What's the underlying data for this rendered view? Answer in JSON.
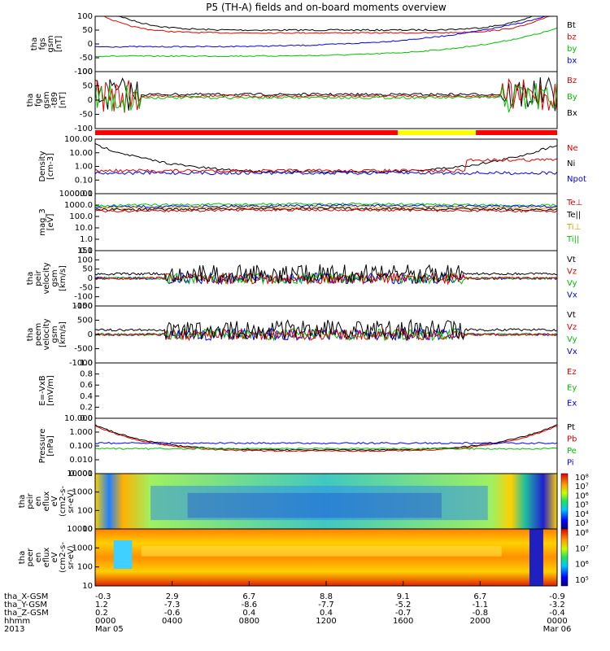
{
  "title": "P5 (TH-A) fields and on-board moments overview",
  "chart_data": {
    "type": "line",
    "panels": [
      {
        "id": "fgs",
        "ylabel": [
          "tha",
          "fgs",
          "gsm",
          "[nT]"
        ],
        "yticks": [
          "100",
          "50",
          "0",
          "-50",
          "-100"
        ],
        "legend": [
          {
            "name": "Bt",
            "color": "#000000"
          },
          {
            "name": "bz",
            "color": "#e00000"
          },
          {
            "name": "by",
            "color": "#00c000"
          },
          {
            "name": "bx",
            "color": "#0000ff"
          }
        ]
      },
      {
        "id": "fge",
        "ylabel": [
          "tha",
          "fge",
          "gsm",
          "-t89",
          "[nT]"
        ],
        "yticks": [
          "100",
          "50",
          "0",
          "-50",
          "-100"
        ],
        "legend": [
          {
            "name": "Bz",
            "color": "#e00000"
          },
          {
            "name": "By",
            "color": "#00c000"
          },
          {
            "name": "Bx",
            "color": "#000000"
          }
        ]
      },
      {
        "id": "bar",
        "ylabel": [],
        "yticks": [],
        "legend": [],
        "segments": [
          {
            "from": 0,
            "to": 0.655,
            "color": "#ff0000"
          },
          {
            "from": 0.655,
            "to": 0.824,
            "color": "#ffff00"
          },
          {
            "from": 0.824,
            "to": 1,
            "color": "#ff0000"
          }
        ]
      },
      {
        "id": "density",
        "ylabel": [
          "Density",
          "[cm-3]"
        ],
        "yticks": [
          "100.00",
          "10.00",
          "1.00",
          "0.10",
          "0.01"
        ],
        "legend": [
          {
            "name": "Ne",
            "color": "#e00000"
          },
          {
            "name": "Ni",
            "color": "#000000"
          },
          {
            "name": "Npot",
            "color": "#0000ff"
          }
        ]
      },
      {
        "id": "temp",
        "ylabel": [
          "mag_3",
          "[eV]"
        ],
        "yticks": [
          "10000.0",
          "1000.0",
          "100.0",
          "10.0",
          "1.0",
          "0.1"
        ],
        "legend": [
          {
            "name": "Te⊥",
            "color": "#e00000"
          },
          {
            "name": "Te||",
            "color": "#000000"
          },
          {
            "name": "Ti⊥",
            "color": "#e0a000"
          },
          {
            "name": "Ti||",
            "color": "#00c000"
          }
        ]
      },
      {
        "id": "peir_v",
        "ylabel": [
          "tha",
          "peir",
          "velocity",
          "gsm",
          "[km/s]"
        ],
        "yticks": [
          "150",
          "100",
          "50",
          "0",
          "-50",
          "-100",
          "-150"
        ],
        "legend": [
          {
            "name": "Vt",
            "color": "#000000"
          },
          {
            "name": "Vz",
            "color": "#e00000"
          },
          {
            "name": "Vy",
            "color": "#00c000"
          },
          {
            "name": "Vx",
            "color": "#0000ff"
          }
        ]
      },
      {
        "id": "peer_v",
        "ylabel": [
          "tha",
          "peem",
          "velocity",
          "gsm",
          "[km/s]"
        ],
        "yticks": [
          "1000",
          "500",
          "0",
          "-500",
          "-1000"
        ],
        "legend": [
          {
            "name": "Vt",
            "color": "#000000"
          },
          {
            "name": "Vz",
            "color": "#e00000"
          },
          {
            "name": "Vy",
            "color": "#00c000"
          },
          {
            "name": "Vx",
            "color": "#0000ff"
          }
        ]
      },
      {
        "id": "efield",
        "ylabel": [
          "E=-VxB",
          "[mV/m]"
        ],
        "yticks": [
          "1.0",
          "0.8",
          "0.6",
          "0.4",
          "0.2",
          "0.0"
        ],
        "legend": [
          {
            "name": "Ez",
            "color": "#e00000"
          },
          {
            "name": "Ey",
            "color": "#00c000"
          },
          {
            "name": "Ex",
            "color": "#0000ff"
          }
        ]
      },
      {
        "id": "pressure",
        "ylabel": [
          "Pressure",
          "[nPa]"
        ],
        "yticks": [
          "10.000",
          "1.000",
          "0.100",
          "0.010",
          "0.001"
        ],
        "legend": [
          {
            "name": "Pt",
            "color": "#000000"
          },
          {
            "name": "Pb",
            "color": "#e00000"
          },
          {
            "name": "Pe",
            "color": "#00c000"
          },
          {
            "name": "Pi",
            "color": "#0000ff"
          }
        ]
      },
      {
        "id": "peir_spec",
        "ylabel": [
          "tha",
          "peir",
          "en",
          "eflux",
          "eV",
          "(cm2-s-",
          "sr-eV)"
        ],
        "yticks": [
          "10000",
          "1000",
          "100",
          "10"
        ],
        "cbticks": [
          "10⁸",
          "10⁷",
          "10⁶",
          "10⁵",
          "10⁴",
          "10³"
        ]
      },
      {
        "id": "peer_spec",
        "ylabel": [
          "tha",
          "peer",
          "en",
          "eflux",
          "eV",
          "(cm2-s-",
          "sr-eV)"
        ],
        "yticks": [
          "10000",
          "1000",
          "100",
          "10"
        ],
        "cbticks": [
          "10⁸",
          "10⁷",
          "10⁶",
          "10⁵"
        ]
      }
    ],
    "orbit_labels": {
      "rows": [
        {
          "name": "tha_X-GSM",
          "values": [
            "-0.3",
            "2.9",
            "6.7",
            "8.8",
            "9.1",
            "6.7",
            "-0.9"
          ]
        },
        {
          "name": "tha_Y-GSM",
          "values": [
            "1.2",
            "-7.3",
            "-8.6",
            "-7.7",
            "-5.2",
            "-1.1",
            "-3.2"
          ]
        },
        {
          "name": "tha_Z-GSM",
          "values": [
            "0.2",
            "-0.6",
            "0.4",
            "0.4",
            "-0.7",
            "-0.8",
            "-0.4"
          ]
        },
        {
          "name": "hhmm",
          "values": [
            "0000",
            "0400",
            "0800",
            "1200",
            "1600",
            "2000",
            "0000"
          ]
        },
        {
          "name": "2013",
          "values": [
            "Mar 05",
            "",
            "",
            "",
            "",
            "",
            "Mar 06"
          ]
        }
      ]
    }
  }
}
